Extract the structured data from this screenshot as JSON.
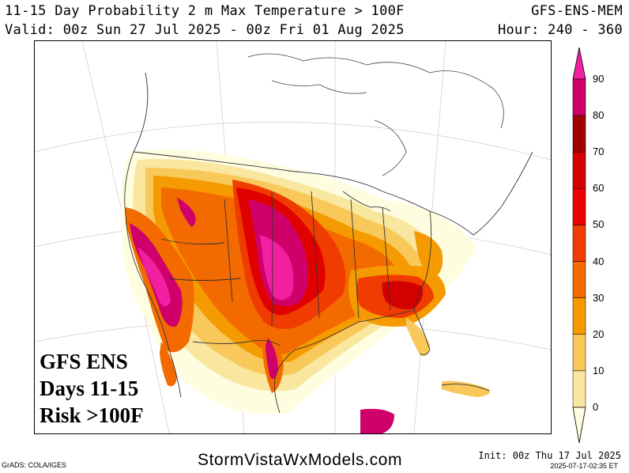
{
  "header": {
    "title": "11-15 Day Probability 2 m Max Temperature > 100F",
    "model": "GFS-ENS-MEM",
    "valid": "Valid: 00z Sun 27 Jul 2025 - 00z Fri 01 Aug 2025",
    "hours": "Hour: 240 - 360"
  },
  "overlay": {
    "line1": "GFS ENS",
    "line2": "Days 11-15",
    "line3": "Risk >100F"
  },
  "colorbar": {
    "levels": [
      "0",
      "10",
      "20",
      "30",
      "40",
      "50",
      "60",
      "70",
      "80",
      "90"
    ],
    "colors": [
      "#fffde0",
      "#f9e7a0",
      "#f8c85a",
      "#f59a00",
      "#f26a00",
      "#f03c00",
      "#f00000",
      "#d40000",
      "#a00000",
      "#d0006a",
      "#f020a0"
    ]
  },
  "footer": {
    "grads": "GrADS: COLA/IGES",
    "site": "StormVistaWxModels.com",
    "init": "Init: 00z Thu 17 Jul 2025",
    "generated": "2025-07-17-02:35 ET"
  }
}
